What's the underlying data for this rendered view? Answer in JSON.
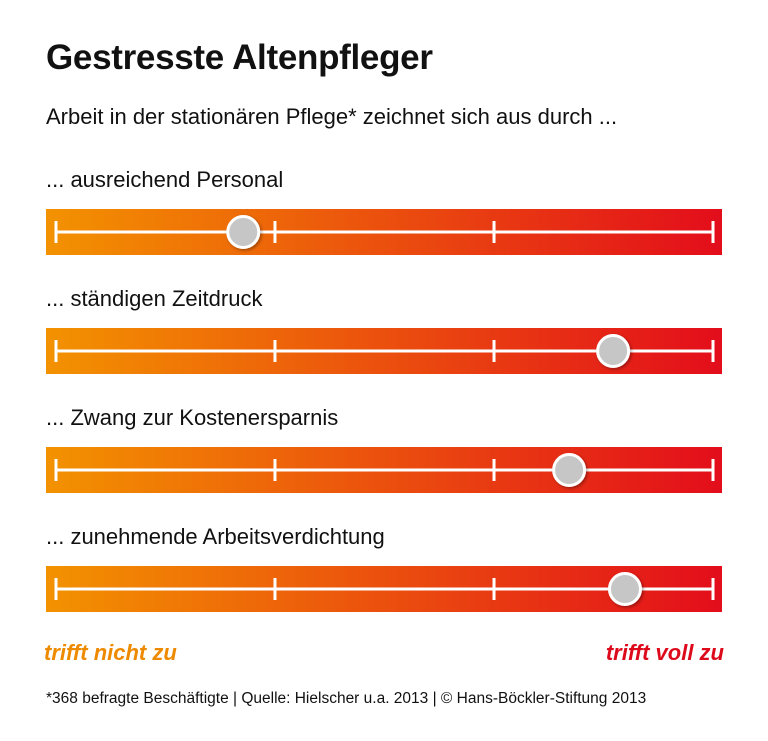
{
  "title": "Gestresste Altenpfleger",
  "subtitle": "Arbeit in der stationären Pflege* zeichnet sich aus durch ...",
  "chart_data": {
    "type": "scale",
    "scale_min_label": "trifft nicht zu",
    "scale_max_label": "trifft voll zu",
    "scale_range": [
      0,
      1
    ],
    "ticks": [
      0,
      0.3333,
      0.6667,
      1
    ],
    "gradient_colors": [
      "#f39200",
      "#e30d1b"
    ],
    "marker_color": "#c6c6c6",
    "items": [
      {
        "label": "... ausreichend Personal",
        "value": 0.285
      },
      {
        "label": "... ständigen Zeitdruck",
        "value": 0.848
      },
      {
        "label": "... Zwang zur Kostenersparnis",
        "value": 0.781
      },
      {
        "label": "... zunehmende Arbeitsverdichtung",
        "value": 0.866
      }
    ]
  },
  "footnote": "*368 befragte Beschäftigte | Quelle: Hielscher u.a. 2013 | © Hans-Böckler-Stiftung 2013"
}
